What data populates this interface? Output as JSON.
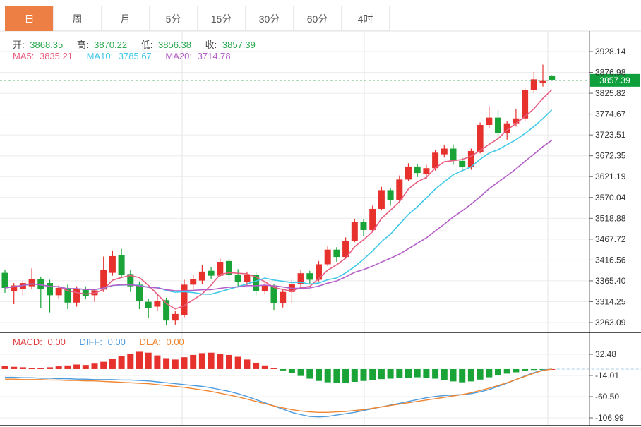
{
  "toolbar": {
    "tabs": [
      {
        "key": "1d",
        "label": "日",
        "active": true
      },
      {
        "key": "1w",
        "label": "周",
        "active": false
      },
      {
        "key": "1mo",
        "label": "月",
        "active": false
      },
      {
        "key": "5m",
        "label": "5分",
        "active": false
      },
      {
        "key": "15m",
        "label": "15分",
        "active": false
      },
      {
        "key": "30m",
        "label": "30分",
        "active": false
      },
      {
        "key": "60m",
        "label": "60分",
        "active": false
      },
      {
        "key": "4h",
        "label": "4时",
        "active": false
      }
    ]
  },
  "main_chart": {
    "ohlc": {
      "open_label": "开:",
      "open_value": "3868.35",
      "high_label": "高:",
      "high_value": "3870.22",
      "low_label": "低:",
      "low_value": "3856.38",
      "close_label": "收:",
      "close_value": "3857.39"
    },
    "ma": {
      "ma5_label": "MA5:",
      "ma5_value": "3835.21",
      "ma10_label": "MA10:",
      "ma10_value": "3785.67",
      "ma20_label": "MA20:",
      "ma20_value": "3714.78"
    },
    "current_price_badge": "3857.39"
  },
  "macd_panel": {
    "macd_label": "MACD:",
    "macd_value": "0.00",
    "diff_label": "DIFF:",
    "diff_value": "0.00",
    "dea_label": "DEA:",
    "dea_value": "0.00"
  },
  "chart_data": {
    "type": "candlestick",
    "panels": [
      "price",
      "macd"
    ],
    "timeframe": "日",
    "y_axis_price": [
      "3928.14",
      "3876.98",
      "3825.82",
      "3774.67",
      "3723.51",
      "3672.35",
      "3621.19",
      "3570.04",
      "3518.88",
      "3467.72",
      "3416.56",
      "3365.40",
      "3314.25",
      "3263.09"
    ],
    "y_axis_macd": [
      "32.48",
      "-14.01",
      "-60.50",
      "-106.99"
    ],
    "current_price": 3857.39,
    "last_candle": {
      "open": 3868.35,
      "high": 3870.22,
      "low": 3856.38,
      "close": 3857.39
    },
    "ma_periods": [
      5,
      10,
      20
    ],
    "ma_current": {
      "ma5": 3835.21,
      "ma10": 3785.67,
      "ma20": 3714.78
    },
    "candles": [
      [
        3385,
        3392,
        3336,
        3348
      ],
      [
        3340,
        3360,
        3308,
        3354
      ],
      [
        3346,
        3366,
        3330,
        3360
      ],
      [
        3352,
        3396,
        3344,
        3370
      ],
      [
        3370,
        3376,
        3298,
        3346
      ],
      [
        3360,
        3368,
        3288,
        3330
      ],
      [
        3330,
        3354,
        3322,
        3348
      ],
      [
        3348,
        3356,
        3296,
        3312
      ],
      [
        3312,
        3352,
        3302,
        3346
      ],
      [
        3346,
        3352,
        3320,
        3328
      ],
      [
        3330,
        3346,
        3314,
        3342
      ],
      [
        3344,
        3425,
        3338,
        3392
      ],
      [
        3385,
        3440,
        3378,
        3426
      ],
      [
        3428,
        3444,
        3372,
        3380
      ],
      [
        3382,
        3392,
        3338,
        3352
      ],
      [
        3356,
        3364,
        3296,
        3316
      ],
      [
        3314,
        3322,
        3274,
        3298
      ],
      [
        3302,
        3332,
        3292,
        3316
      ],
      [
        3318,
        3324,
        3256,
        3268
      ],
      [
        3268,
        3292,
        3258,
        3284
      ],
      [
        3282,
        3368,
        3276,
        3356
      ],
      [
        3356,
        3380,
        3346,
        3370
      ],
      [
        3366,
        3404,
        3358,
        3388
      ],
      [
        3390,
        3400,
        3370,
        3378
      ],
      [
        3378,
        3420,
        3374,
        3412
      ],
      [
        3414,
        3420,
        3370,
        3380
      ],
      [
        3380,
        3394,
        3352,
        3362
      ],
      [
        3362,
        3388,
        3354,
        3380
      ],
      [
        3380,
        3386,
        3330,
        3340
      ],
      [
        3340,
        3362,
        3332,
        3354
      ],
      [
        3354,
        3358,
        3294,
        3310
      ],
      [
        3310,
        3346,
        3300,
        3338
      ],
      [
        3338,
        3368,
        3312,
        3358
      ],
      [
        3358,
        3392,
        3350,
        3384
      ],
      [
        3384,
        3390,
        3358,
        3368
      ],
      [
        3368,
        3414,
        3364,
        3406
      ],
      [
        3406,
        3450,
        3402,
        3442
      ],
      [
        3442,
        3448,
        3412,
        3424
      ],
      [
        3424,
        3472,
        3420,
        3464
      ],
      [
        3464,
        3518,
        3460,
        3510
      ],
      [
        3510,
        3516,
        3476,
        3490
      ],
      [
        3490,
        3550,
        3486,
        3542
      ],
      [
        3542,
        3596,
        3538,
        3588
      ],
      [
        3588,
        3594,
        3550,
        3564
      ],
      [
        3564,
        3624,
        3560,
        3614
      ],
      [
        3614,
        3654,
        3610,
        3646
      ],
      [
        3646,
        3652,
        3620,
        3630
      ],
      [
        3628,
        3650,
        3616,
        3642
      ],
      [
        3642,
        3686,
        3636,
        3680
      ],
      [
        3676,
        3698,
        3668,
        3690
      ],
      [
        3690,
        3700,
        3650,
        3660
      ],
      [
        3660,
        3668,
        3634,
        3644
      ],
      [
        3644,
        3690,
        3638,
        3684
      ],
      [
        3682,
        3754,
        3678,
        3748
      ],
      [
        3748,
        3794,
        3740,
        3766
      ],
      [
        3766,
        3784,
        3718,
        3728
      ],
      [
        3728,
        3758,
        3712,
        3752
      ],
      [
        3752,
        3788,
        3744,
        3764
      ],
      [
        3764,
        3840,
        3756,
        3834
      ],
      [
        3834,
        3878,
        3826,
        3860
      ],
      [
        3852,
        3896,
        3842,
        3856
      ],
      [
        3868.35,
        3870.22,
        3856.38,
        3857.39
      ]
    ],
    "macd": {
      "hist": [
        7,
        5,
        4,
        3,
        2,
        4,
        6,
        8,
        10,
        9,
        12,
        16,
        22,
        28,
        34,
        38,
        36,
        30,
        24,
        21,
        26,
        31,
        35,
        36,
        34,
        31,
        27,
        21,
        14,
        8,
        3,
        -3,
        -9,
        -15,
        -21,
        -26,
        -29,
        -31,
        -30,
        -28,
        -26,
        -24,
        -22,
        -21,
        -20,
        -19,
        -18,
        -19,
        -21,
        -24,
        -27,
        -29,
        -27,
        -23,
        -18,
        -14,
        -10,
        -7,
        -4,
        -2,
        -1,
        0
      ],
      "diff": [
        -18,
        -18,
        -19,
        -19,
        -20,
        -20,
        -21,
        -21,
        -22,
        -22,
        -23,
        -23,
        -23,
        -24,
        -24,
        -25,
        -26,
        -28,
        -30,
        -32,
        -34,
        -36,
        -38,
        -41,
        -45,
        -49,
        -54,
        -60,
        -67,
        -74,
        -81,
        -88,
        -95,
        -100,
        -104,
        -105,
        -104,
        -101,
        -98,
        -95,
        -91,
        -87,
        -83,
        -79,
        -75,
        -71,
        -67,
        -63,
        -60,
        -58,
        -57,
        -56,
        -54,
        -50,
        -45,
        -38,
        -31,
        -23,
        -15,
        -8,
        -2,
        0
      ],
      "dea": [
        -22,
        -22,
        -23,
        -23,
        -23,
        -24,
        -24,
        -25,
        -25,
        -26,
        -26,
        -27,
        -28,
        -29,
        -30,
        -31,
        -32,
        -34,
        -36,
        -38,
        -40,
        -43,
        -46,
        -49,
        -53,
        -57,
        -61,
        -66,
        -71,
        -76,
        -81,
        -85,
        -89,
        -92,
        -94,
        -95,
        -95,
        -94,
        -93,
        -91,
        -89,
        -86,
        -83,
        -80,
        -77,
        -74,
        -71,
        -68,
        -65,
        -62,
        -59,
        -56,
        -52,
        -47,
        -42,
        -36,
        -30,
        -23,
        -16,
        -9,
        -3,
        0
      ],
      "current": {
        "macd": 0.0,
        "diff": 0.0,
        "dea": 0.0
      }
    },
    "colors": {
      "up": "#e6312c",
      "down": "#1aa337",
      "ma5": "#e85d80",
      "ma10": "#3fc8e8",
      "ma20": "#b45fc8",
      "diff": "#4d9bdd",
      "dea": "#ef8632",
      "price_line": "#29a14b",
      "badge_bg": "#0f9f3c",
      "zero_dash": "#a8cfe9",
      "tab_active": "#ee7f44"
    },
    "layout_hints": {
      "grid": true,
      "axis_side": "right"
    }
  }
}
